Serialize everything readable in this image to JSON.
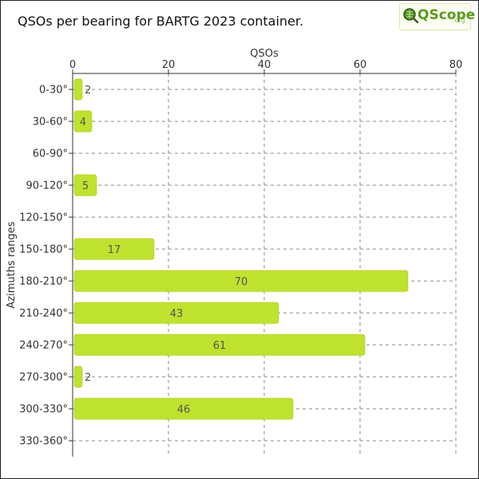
{
  "title": "QSOs per bearing for BARTG 2023 container.",
  "logo": {
    "text": "QScope",
    "suffix": ".org"
  },
  "chart_data": {
    "type": "bar",
    "orientation": "horizontal",
    "title": "QSOs per bearing for BARTG 2023 container.",
    "xlabel": "QSOs",
    "ylabel": "Azimuths ranges",
    "x_axis_position": "top",
    "xlim": [
      0,
      80
    ],
    "xticks": [
      0,
      20,
      40,
      60,
      80
    ],
    "grid": true,
    "categories": [
      "0-30°",
      "30-60°",
      "60-90°",
      "90-120°",
      "120-150°",
      "150-180°",
      "180-210°",
      "210-240°",
      "240-270°",
      "270-300°",
      "300-330°",
      "330-360°"
    ],
    "values": [
      2,
      4,
      0,
      5,
      0,
      17,
      70,
      43,
      61,
      2,
      46,
      0
    ],
    "bar_color": "#bfe22e"
  }
}
